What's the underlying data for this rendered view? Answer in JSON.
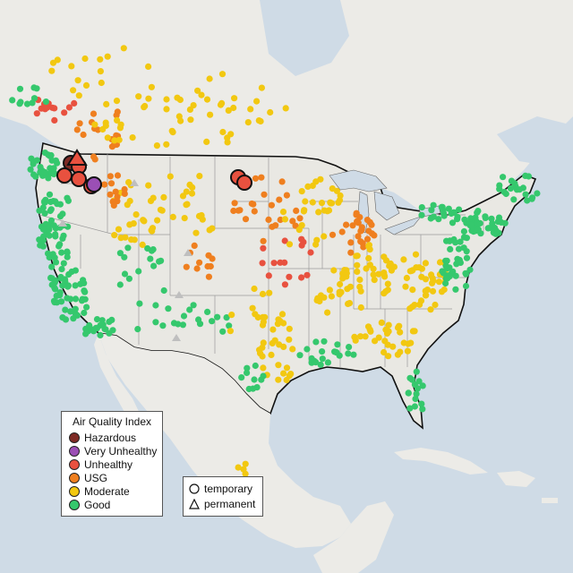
{
  "legend": {
    "title": "Air Quality Index",
    "categories": [
      {
        "label": "Hazardous",
        "color": "#7e2a24"
      },
      {
        "label": "Very Unhealthy",
        "color": "#9b4fb5"
      },
      {
        "label": "Unhealthy",
        "color": "#e8513f"
      },
      {
        "label": "USG",
        "color": "#ef7f1f"
      },
      {
        "label": "Moderate",
        "color": "#f2c811"
      },
      {
        "label": "Good",
        "color": "#35c86d"
      }
    ]
  },
  "monitor_types": [
    {
      "label": "temporary",
      "shape": "circle"
    },
    {
      "label": "permanent",
      "shape": "triangle"
    }
  ],
  "colors": {
    "water": "#cfdbe6",
    "land": "#ecebe7",
    "us_land": "#e9e8e3",
    "border": "#111111",
    "state_line": "#9a9a9a",
    "inactive_monitor": "#bfbfbf"
  }
}
